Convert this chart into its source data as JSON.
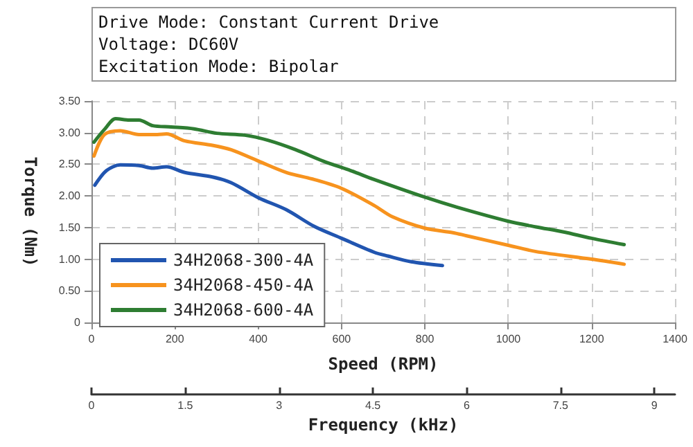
{
  "chart_data": {
    "type": "line",
    "title": "Drive Mode: Constant Current Drive\nVoltage: DC60V\nExcitation Mode: Bipolar",
    "xlabel": "Speed (RPM)",
    "ylabel": "Torque (Nm)",
    "x2label": "Frequency (kHz)",
    "xlim": [
      0,
      1400
    ],
    "xticks": [
      0,
      200,
      400,
      600,
      800,
      1000,
      1200,
      1400
    ],
    "ylim": [
      0,
      3.5
    ],
    "yticks": [
      {
        "value": 0,
        "label": "0"
      },
      {
        "value": 0.5,
        "label": "0.50"
      },
      {
        "value": 1,
        "label": "1.00"
      },
      {
        "value": 1.5,
        "label": "1.50"
      },
      {
        "value": 2,
        "label": "2.00"
      },
      {
        "value": 2.5,
        "label": "2.50"
      },
      {
        "value": 3,
        "label": "3.00"
      },
      {
        "value": 3.5,
        "label": "3.50"
      }
    ],
    "x2lim": [
      0,
      9.33
    ],
    "x2ticks": [
      0,
      1.5,
      3,
      4.5,
      6,
      7.5,
      9
    ],
    "grid": true,
    "legend": "bottom left",
    "marker": "none",
    "line_style": "solid",
    "series": [
      {
        "name": "34H2068-300-4A",
        "color": "#2155b0",
        "x": [
          8,
          36,
          69,
          114,
          147,
          180,
          224,
          290,
          335,
          401,
          468,
          534,
          600,
          678,
          711,
          767,
          842
        ],
        "values": [
          2.17,
          2.4,
          2.49,
          2.48,
          2.44,
          2.46,
          2.37,
          2.3,
          2.21,
          1.97,
          1.78,
          1.52,
          1.33,
          1.11,
          1.05,
          0.96,
          0.9
        ]
      },
      {
        "name": "34H2068-450-4A",
        "color": "#f7931e",
        "x": [
          6,
          31,
          69,
          114,
          158,
          180,
          224,
          290,
          335,
          401,
          468,
          534,
          600,
          678,
          722,
          800,
          867,
          900,
          1000,
          1067,
          1200,
          1278
        ],
        "values": [
          2.63,
          2.97,
          3.03,
          2.97,
          2.97,
          2.98,
          2.87,
          2.8,
          2.73,
          2.55,
          2.37,
          2.26,
          2.12,
          1.85,
          1.67,
          1.49,
          1.42,
          1.37,
          1.22,
          1.12,
          1.0,
          0.92
        ]
      },
      {
        "name": "34H2068-600-4A",
        "color": "#2e7d32",
        "x": [
          6,
          31,
          58,
          91,
          114,
          147,
          191,
          246,
          301,
          368,
          423,
          490,
          556,
          622,
          678,
          800,
          878,
          1000,
          1067,
          1133,
          1200,
          1278
        ],
        "values": [
          2.85,
          3.05,
          3.22,
          3.2,
          3.2,
          3.11,
          3.09,
          3.06,
          2.99,
          2.96,
          2.88,
          2.73,
          2.55,
          2.4,
          2.26,
          1.98,
          1.82,
          1.6,
          1.51,
          1.43,
          1.33,
          1.23
        ]
      }
    ]
  }
}
